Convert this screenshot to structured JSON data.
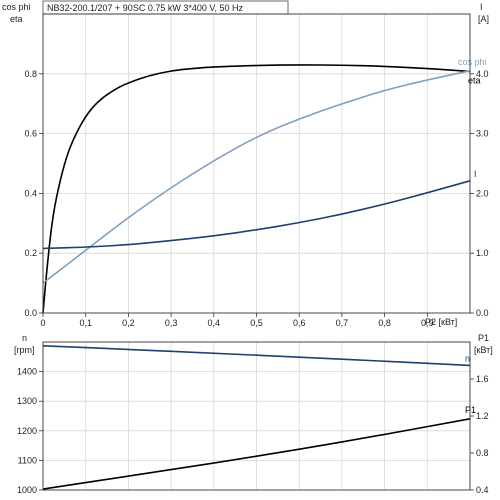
{
  "title": "NB32-200.1/207 + 90SC   0.75 kW   3*400 V, 50 Hz",
  "chart_data": [
    {
      "type": "line",
      "panel": "top",
      "x_label": "P2 [кВт]",
      "x_ticks": [
        "0",
        "0,1",
        "0,2",
        "0,3",
        "0,4",
        "0,5",
        "0,6",
        "0,7",
        "0,8",
        "0,9"
      ],
      "xlim": [
        0,
        1.0
      ],
      "left_axis": {
        "label_top": "cos phi",
        "label_bottom": "eta",
        "ylim": [
          0,
          1.0
        ],
        "ticks": [
          "0.0",
          "0.2",
          "0.4",
          "0.6",
          "0.8"
        ]
      },
      "right_axis": {
        "label_top": "I",
        "label_bottom": "[A]",
        "ylim": [
          0,
          5.0
        ],
        "ticks": [
          "0.0",
          "1.0",
          "2.0",
          "3.0",
          "4.0"
        ]
      },
      "grid": true,
      "series": [
        {
          "name": "eta",
          "axis": "left",
          "color": "#000000",
          "x": [
            0,
            0.01,
            0.02,
            0.03,
            0.05,
            0.07,
            0.1,
            0.13,
            0.17,
            0.2,
            0.25,
            0.3,
            0.35,
            0.4,
            0.5,
            0.6,
            0.7,
            0.8,
            0.9,
            1.0
          ],
          "y": [
            0,
            0.16,
            0.29,
            0.38,
            0.5,
            0.58,
            0.66,
            0.71,
            0.75,
            0.77,
            0.795,
            0.81,
            0.818,
            0.823,
            0.828,
            0.83,
            0.829,
            0.825,
            0.818,
            0.808
          ]
        },
        {
          "name": "cos phi",
          "axis": "left",
          "color": "#7f9fbf",
          "x": [
            0,
            0.1,
            0.2,
            0.3,
            0.4,
            0.5,
            0.6,
            0.7,
            0.8,
            0.9,
            1.0
          ],
          "y": [
            0.1,
            0.21,
            0.32,
            0.42,
            0.51,
            0.59,
            0.65,
            0.7,
            0.745,
            0.78,
            0.81
          ]
        },
        {
          "name": "I",
          "axis": "right",
          "color": "#1f3f6f",
          "x": [
            0,
            0.1,
            0.2,
            0.3,
            0.4,
            0.5,
            0.6,
            0.7,
            0.8,
            0.9,
            1.0
          ],
          "y": [
            1.08,
            1.1,
            1.14,
            1.21,
            1.29,
            1.39,
            1.51,
            1.65,
            1.82,
            2.01,
            2.21
          ]
        }
      ]
    },
    {
      "type": "line",
      "panel": "bottom",
      "xlim": [
        0,
        1.0
      ],
      "left_axis": {
        "label_top": "n",
        "label_bottom": "[rpm]",
        "ylim": [
          1000,
          1500
        ],
        "ticks": [
          "1000",
          "1100",
          "1200",
          "1300",
          "1400"
        ]
      },
      "right_axis": {
        "label_top": "P1",
        "label_bottom": "[кВт]",
        "ylim": [
          0.4,
          2.0
        ],
        "ticks": [
          "0.4",
          "0.8",
          "1.2",
          "1.6"
        ]
      },
      "grid": true,
      "series": [
        {
          "name": "n",
          "axis": "left",
          "color": "#1f3f6f",
          "x": [
            0,
            0.2,
            0.4,
            0.6,
            0.8,
            1.0
          ],
          "y": [
            1487,
            1475,
            1462,
            1449,
            1435,
            1421
          ]
        },
        {
          "name": "P1",
          "axis": "right",
          "color": "#000000",
          "x": [
            0,
            0.2,
            0.4,
            0.6,
            0.8,
            1.0
          ],
          "y": [
            0.41,
            0.55,
            0.69,
            0.84,
            1.0,
            1.17
          ]
        }
      ]
    }
  ]
}
